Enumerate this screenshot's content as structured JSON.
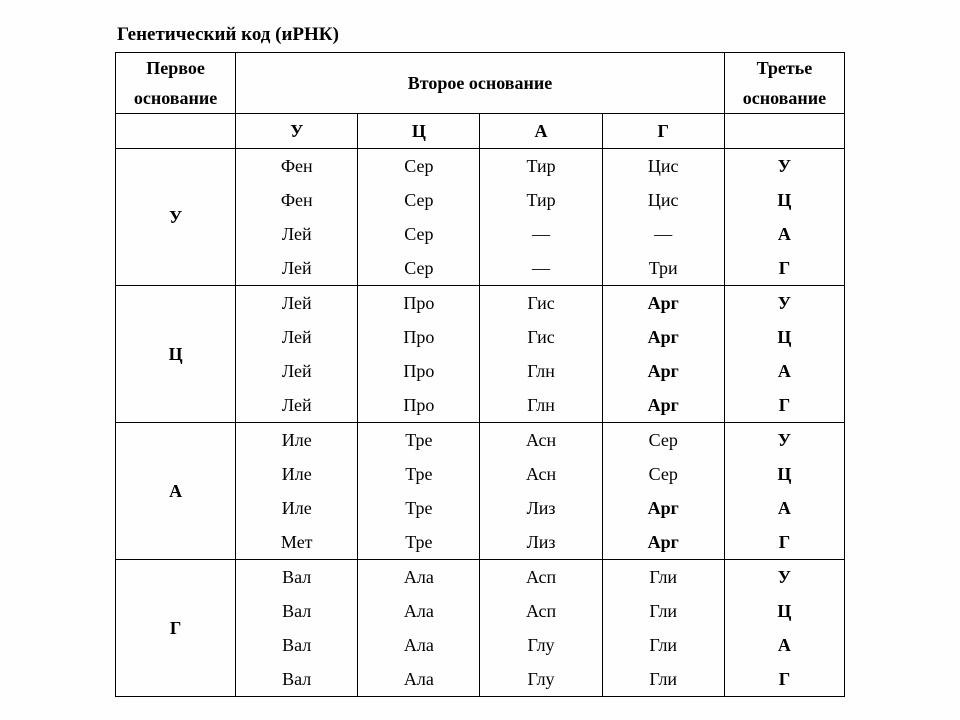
{
  "title": "Генетический код (иРНК)",
  "headers": {
    "first_top": "Первое",
    "first_bot": "основание",
    "second": "Второе основание",
    "third_top": "Третье",
    "third_bot": "основание"
  },
  "bases": [
    "У",
    "Ц",
    "А",
    "Г"
  ],
  "table": {
    "rows": [
      {
        "first": "У",
        "cells": [
          [
            "Фен",
            "Сер",
            "Тир",
            "Цис"
          ],
          [
            "Фен",
            "Сер",
            "Тир",
            "Цис"
          ],
          [
            "Лей",
            "Сер",
            "—",
            "—"
          ],
          [
            "Лей",
            "Сер",
            "—",
            "Три"
          ]
        ],
        "third": [
          "У",
          "Ц",
          "А",
          "Г"
        ],
        "bold_mask": [
          [
            false,
            false,
            false,
            false
          ],
          [
            false,
            false,
            false,
            false
          ],
          [
            false,
            false,
            false,
            false
          ],
          [
            false,
            false,
            false,
            false
          ]
        ]
      },
      {
        "first": "Ц",
        "cells": [
          [
            "Лей",
            "Про",
            "Гис",
            "Арг"
          ],
          [
            "Лей",
            "Про",
            "Гис",
            "Арг"
          ],
          [
            "Лей",
            "Про",
            "Глн",
            "Арг"
          ],
          [
            "Лей",
            "Про",
            "Глн",
            "Арг"
          ]
        ],
        "third": [
          "У",
          "Ц",
          "А",
          "Г"
        ],
        "bold_mask": [
          [
            false,
            false,
            false,
            true
          ],
          [
            false,
            false,
            false,
            true
          ],
          [
            false,
            false,
            false,
            true
          ],
          [
            false,
            false,
            false,
            true
          ]
        ]
      },
      {
        "first": "А",
        "cells": [
          [
            "Иле",
            "Тре",
            "Асн",
            "Сер"
          ],
          [
            "Иле",
            "Тре",
            "Асн",
            "Сер"
          ],
          [
            "Иле",
            "Тре",
            "Лиз",
            "Арг"
          ],
          [
            "Мет",
            "Тре",
            "Лиз",
            "Арг"
          ]
        ],
        "third": [
          "У",
          "Ц",
          "А",
          "Г"
        ],
        "bold_mask": [
          [
            false,
            false,
            false,
            false
          ],
          [
            false,
            false,
            false,
            false
          ],
          [
            false,
            false,
            false,
            true
          ],
          [
            false,
            false,
            false,
            true
          ]
        ]
      },
      {
        "first": "Г",
        "cells": [
          [
            "Вал",
            "Ала",
            "Асп",
            "Гли"
          ],
          [
            "Вал",
            "Ала",
            "Асп",
            "Гли"
          ],
          [
            "Вал",
            "Ала",
            "Глу",
            "Гли"
          ],
          [
            "Вал",
            "Ала",
            "Глу",
            "Гли"
          ]
        ],
        "third": [
          "У",
          "Ц",
          "А",
          "Г"
        ],
        "bold_mask": [
          [
            false,
            false,
            false,
            false
          ],
          [
            false,
            false,
            false,
            false
          ],
          [
            false,
            false,
            false,
            false
          ],
          [
            false,
            false,
            false,
            false
          ]
        ]
      }
    ]
  },
  "style": {
    "font_family": "Times New Roman",
    "title_fontsize_pt": 14,
    "cell_fontsize_pt": 13,
    "border_color": "#000000",
    "background_color": "#fefefe",
    "text_color": "#000000"
  }
}
